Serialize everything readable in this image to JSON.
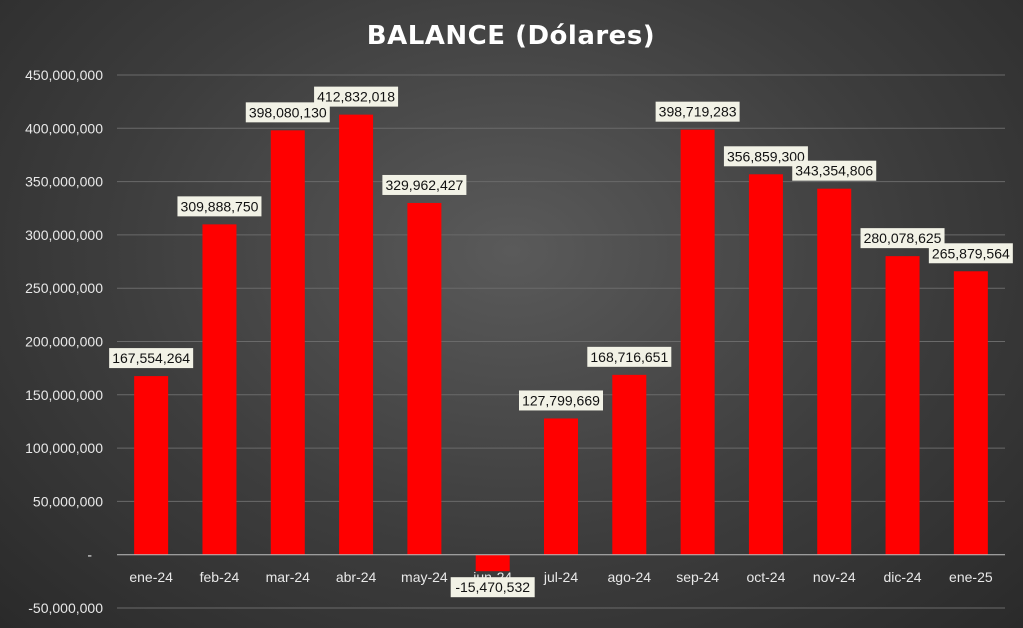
{
  "chart_data": {
    "type": "bar",
    "title": "BALANCE (Dólares)",
    "xlabel": "",
    "ylabel": "",
    "categories": [
      "ene-24",
      "feb-24",
      "mar-24",
      "abr-24",
      "may-24",
      "jun-24",
      "jul-24",
      "ago-24",
      "sep-24",
      "oct-24",
      "nov-24",
      "dic-24",
      "ene-25"
    ],
    "values": [
      167554264,
      309888750,
      398080130,
      412832018,
      329962427,
      -15470532,
      127799669,
      168716651,
      398719283,
      356859300,
      343354806,
      280078625,
      265879564
    ],
    "data_labels": [
      "167,554,264",
      "309,888,750",
      "398,080,130",
      "412,832,018",
      "329,962,427",
      "-15,470,532",
      "127,799,669",
      "168,716,651",
      "398,719,283",
      "356,859,300",
      "343,354,806",
      "280,078,625",
      "265,879,564"
    ],
    "ylim": [
      -50000000,
      450000000
    ],
    "yticks": [
      -50000000,
      0,
      50000000,
      100000000,
      150000000,
      200000000,
      250000000,
      300000000,
      350000000,
      400000000,
      450000000
    ],
    "ytick_labels": [
      "-50,000,000",
      "-",
      "50,000,000",
      "100,000,000",
      "150,000,000",
      "200,000,000",
      "250,000,000",
      "300,000,000",
      "350,000,000",
      "400,000,000",
      "450,000,000"
    ],
    "grid": true,
    "legend": "none",
    "colors": {
      "bar": "#ff0000",
      "background": "#404040",
      "text": "#ffffff",
      "label_box": "#f2f2e6"
    }
  }
}
